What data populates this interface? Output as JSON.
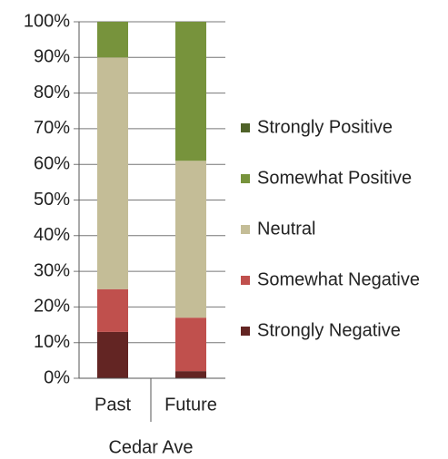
{
  "chart_data": {
    "type": "stacked_bar",
    "xlabel": "Cedar Ave",
    "categories": [
      "Past",
      "Future"
    ],
    "series": [
      {
        "name": "Strongly Negative",
        "color": "#632523",
        "values": [
          13,
          2
        ]
      },
      {
        "name": "Somewhat Negative",
        "color": "#c0504d",
        "values": [
          12,
          15
        ]
      },
      {
        "name": "Neutral",
        "color": "#c4bd97",
        "values": [
          65,
          44
        ]
      },
      {
        "name": "Somewhat Positive",
        "color": "#77933c",
        "values": [
          10,
          39
        ]
      },
      {
        "name": "Strongly Positive",
        "color": "#4f6228",
        "values": [
          0,
          0
        ]
      }
    ],
    "ylim": [
      0,
      100
    ],
    "yticks": [
      {
        "value": 0,
        "label": "0%"
      },
      {
        "value": 10,
        "label": "10%"
      },
      {
        "value": 20,
        "label": "20%"
      },
      {
        "value": 30,
        "label": "30%"
      },
      {
        "value": 40,
        "label": "40%"
      },
      {
        "value": 50,
        "label": "50%"
      },
      {
        "value": 60,
        "label": "60%"
      },
      {
        "value": 70,
        "label": "70%"
      },
      {
        "value": 80,
        "label": "80%"
      },
      {
        "value": 90,
        "label": "90%"
      },
      {
        "value": 100,
        "label": "100%"
      }
    ],
    "grid": true,
    "legend": "right"
  }
}
